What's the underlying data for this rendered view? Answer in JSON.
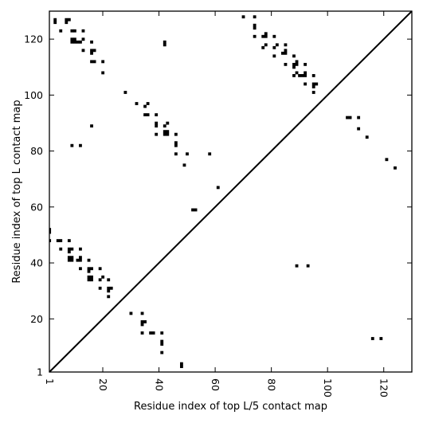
{
  "chart_data": {
    "type": "scatter",
    "title": "",
    "xlabel": "Residue index of top L/5 contact map",
    "ylabel": "Residue index of top L contact map",
    "xlim": [
      1,
      130
    ],
    "ylim": [
      1,
      130
    ],
    "x_ticks": [
      1,
      20,
      40,
      60,
      80,
      100,
      120
    ],
    "x_tick_labels": [
      "1",
      "20",
      "40",
      "60",
      "80",
      "100",
      "120"
    ],
    "y_ticks": [
      1,
      20,
      40,
      60,
      80,
      100,
      120
    ],
    "y_tick_labels": [
      "1",
      "20",
      "40",
      "60",
      "80",
      "100",
      "120"
    ],
    "grid": false,
    "diagonal": true,
    "marker": "square",
    "color": "#000000",
    "series": [
      {
        "name": "",
        "points": [
          [
            3,
            127
          ],
          [
            3,
            126
          ],
          [
            7,
            127
          ],
          [
            8,
            127
          ],
          [
            7,
            126
          ],
          [
            5,
            123
          ],
          [
            9,
            123
          ],
          [
            10,
            123
          ],
          [
            11,
            119
          ],
          [
            12,
            119
          ],
          [
            13,
            120
          ],
          [
            13,
            123
          ],
          [
            9,
            120
          ],
          [
            10,
            120
          ],
          [
            9,
            119
          ],
          [
            10,
            119
          ],
          [
            13,
            116
          ],
          [
            16,
            119
          ],
          [
            16,
            116
          ],
          [
            17,
            116
          ],
          [
            16,
            115
          ],
          [
            16,
            112
          ],
          [
            17,
            112
          ],
          [
            20,
            112
          ],
          [
            20,
            108
          ],
          [
            42,
            119
          ],
          [
            42,
            118
          ],
          [
            70,
            128
          ],
          [
            74,
            128
          ],
          [
            74,
            125
          ],
          [
            74,
            124
          ],
          [
            74,
            121
          ],
          [
            77,
            121
          ],
          [
            78,
            121
          ],
          [
            78,
            122
          ],
          [
            81,
            121
          ],
          [
            77,
            117
          ],
          [
            78,
            118
          ],
          [
            81,
            117
          ],
          [
            82,
            118
          ],
          [
            81,
            114
          ],
          [
            84,
            115
          ],
          [
            85,
            115
          ],
          [
            85,
            116
          ],
          [
            85,
            118
          ],
          [
            85,
            111
          ],
          [
            88,
            114
          ],
          [
            88,
            111
          ],
          [
            89,
            112
          ],
          [
            89,
            111
          ],
          [
            88,
            110
          ],
          [
            89,
            108
          ],
          [
            88,
            107
          ],
          [
            90,
            107
          ],
          [
            91,
            107
          ],
          [
            92,
            107
          ],
          [
            92,
            108
          ],
          [
            92,
            111
          ],
          [
            92,
            104
          ],
          [
            95,
            104
          ],
          [
            96,
            104
          ],
          [
            95,
            103
          ],
          [
            95,
            101
          ],
          [
            95,
            107
          ],
          [
            28,
            101
          ],
          [
            32,
            97
          ],
          [
            35,
            96
          ],
          [
            36,
            97
          ],
          [
            35,
            93
          ],
          [
            36,
            93
          ],
          [
            39,
            93
          ],
          [
            39,
            90
          ],
          [
            39,
            89
          ],
          [
            42,
            89
          ],
          [
            43,
            90
          ],
          [
            42,
            87
          ],
          [
            43,
            86
          ],
          [
            43,
            87
          ],
          [
            39,
            86
          ],
          [
            42,
            86
          ],
          [
            46,
            86
          ],
          [
            46,
            83
          ],
          [
            46,
            82
          ],
          [
            46,
            79
          ],
          [
            50,
            79
          ],
          [
            49,
            75
          ],
          [
            16,
            89
          ],
          [
            9,
            82
          ],
          [
            12,
            82
          ],
          [
            107,
            92
          ],
          [
            108,
            92
          ],
          [
            111,
            92
          ],
          [
            111,
            88
          ],
          [
            114,
            85
          ],
          [
            121,
            77
          ],
          [
            124,
            74
          ],
          [
            58,
            79
          ],
          [
            61,
            67
          ],
          [
            52,
            59
          ],
          [
            53,
            59
          ],
          [
            1,
            52
          ],
          [
            1,
            51
          ],
          [
            1,
            48
          ],
          [
            4,
            48
          ],
          [
            5,
            48
          ],
          [
            8,
            48
          ],
          [
            5,
            45
          ],
          [
            8,
            45
          ],
          [
            8,
            44
          ],
          [
            9,
            45
          ],
          [
            12,
            45
          ],
          [
            8,
            42
          ],
          [
            9,
            42
          ],
          [
            8,
            41
          ],
          [
            9,
            41
          ],
          [
            11,
            41
          ],
          [
            12,
            41
          ],
          [
            12,
            42
          ],
          [
            15,
            41
          ],
          [
            12,
            38
          ],
          [
            15,
            38
          ],
          [
            15,
            37
          ],
          [
            16,
            38
          ],
          [
            19,
            38
          ],
          [
            15,
            35
          ],
          [
            16,
            35
          ],
          [
            15,
            34
          ],
          [
            16,
            34
          ],
          [
            19,
            34
          ],
          [
            20,
            35
          ],
          [
            22,
            34
          ],
          [
            19,
            31
          ],
          [
            22,
            31
          ],
          [
            23,
            31
          ],
          [
            22,
            30
          ],
          [
            22,
            28
          ],
          [
            89,
            39
          ],
          [
            93,
            39
          ],
          [
            30,
            22
          ],
          [
            34,
            22
          ],
          [
            34,
            19
          ],
          [
            35,
            19
          ],
          [
            34,
            18
          ],
          [
            34,
            15
          ],
          [
            37,
            15
          ],
          [
            38,
            15
          ],
          [
            41,
            15
          ],
          [
            41,
            12
          ],
          [
            41,
            11
          ],
          [
            41,
            8
          ],
          [
            48,
            4
          ],
          [
            48,
            3
          ],
          [
            116,
            13
          ],
          [
            119,
            13
          ]
        ]
      }
    ]
  }
}
